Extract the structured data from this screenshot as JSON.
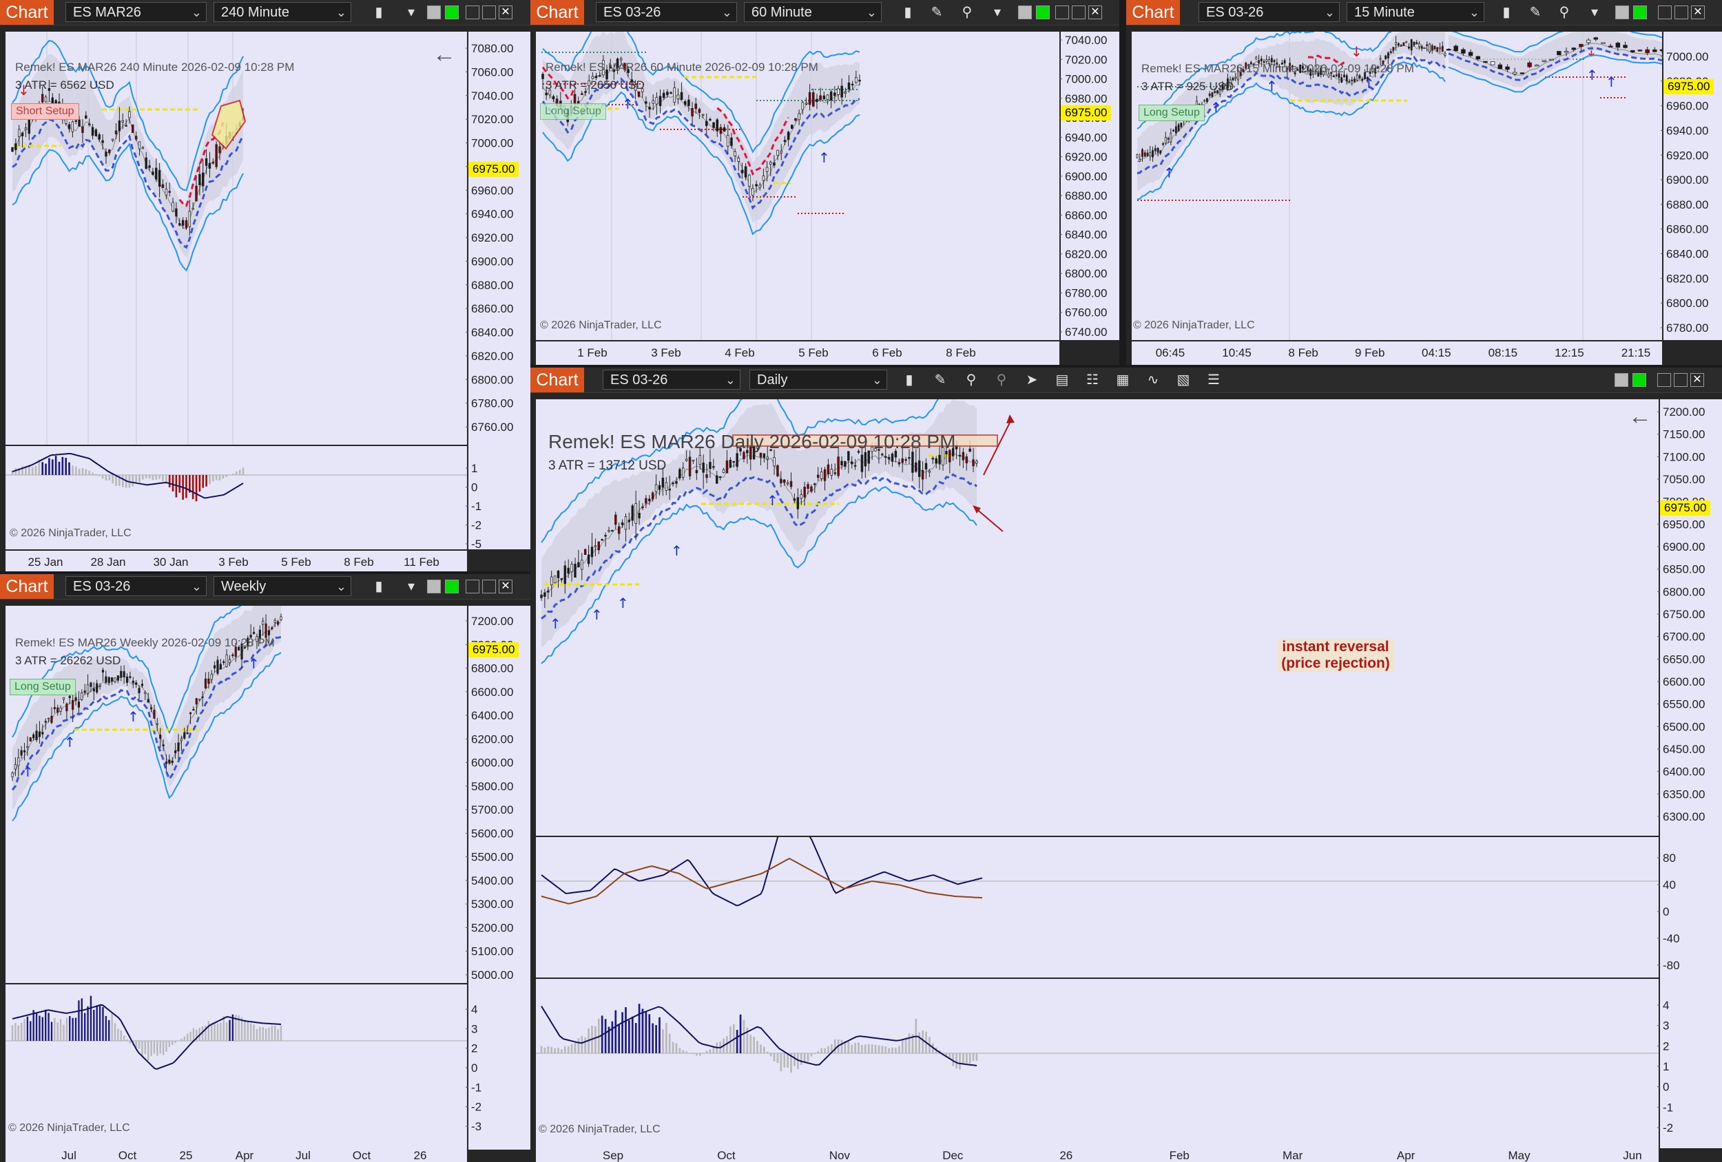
{
  "colors": {
    "accent": "#d9531e",
    "price_tag": "#fff200",
    "band_line": "#2196f3",
    "trail_up": "#3a55d0",
    "trail_down": "#e0153c",
    "bull": "#111111",
    "bear": "#8b0000",
    "hist_up": "#1a1a80",
    "hist_down": "#a01010",
    "hist_neutral": "#b8b8b8"
  },
  "windows": {
    "w240": {
      "tag": "Chart",
      "instrument": "ES MAR26",
      "interval": "240 Minute",
      "header": "Remek!  ES MAR26  240 Minute  2026-02-09 10:28 PM",
      "atr": "3 ATR = 6562 USD",
      "setup": "Short Setup",
      "copyright": "© 2026 NinjaTrader, LLC",
      "price_tag": "6975.00",
      "y_labels": [
        "7080.00",
        "7060.00",
        "7040.00",
        "7020.00",
        "7000.00",
        "6980.00",
        "6960.00",
        "6940.00",
        "6920.00",
        "6900.00",
        "6880.00",
        "6860.00",
        "6840.00",
        "6820.00",
        "6800.00",
        "6780.00",
        "6760.00"
      ],
      "osc_labels": [
        "1",
        "0",
        "-1",
        "-2",
        "-5"
      ],
      "x_labels": [
        "25 Jan",
        "28 Jan",
        "30 Jan",
        "3 Feb",
        "5 Feb",
        "8 Feb",
        "11 Feb"
      ]
    },
    "w60": {
      "tag": "Chart",
      "instrument": "ES 03-26",
      "interval": "60 Minute",
      "header": "Remek!  ES MAR26  60 Minute  2026-02-09 10:28 PM",
      "atr": "3 ATR = 2650 USD",
      "setup": "Long Setup",
      "copyright": "© 2026 NinjaTrader, LLC",
      "price_tag": "6975.00",
      "y_labels": [
        "7040.00",
        "7020.00",
        "7000.00",
        "6980.00",
        "6960.00",
        "6940.00",
        "6920.00",
        "6900.00",
        "6880.00",
        "6860.00",
        "6840.00",
        "6820.00",
        "6800.00",
        "6780.00",
        "6760.00",
        "6740.00"
      ],
      "x_labels": [
        "1 Feb",
        "3 Feb",
        "4 Feb",
        "5 Feb",
        "6 Feb",
        "8 Feb"
      ]
    },
    "w15": {
      "tag": "Chart",
      "instrument": "ES 03-26",
      "interval": "15 Minute",
      "header": "Remek!  ES MAR26  15 Minute  2026-02-09 10:28 PM",
      "atr": "3 ATR = 925 USD",
      "setup": "Long Setup",
      "copyright": "© 2026 NinjaTrader, LLC",
      "price_tag": "6975.00",
      "y_labels": [
        "7000.00",
        "6980.00",
        "6960.00",
        "6940.00",
        "6920.00",
        "6900.00",
        "6880.00",
        "6860.00",
        "6840.00",
        "6820.00",
        "6800.00",
        "6780.00"
      ],
      "x_labels": [
        "06:45",
        "10:45",
        "8 Feb",
        "9 Feb",
        "04:15",
        "08:15",
        "12:15",
        "21:15"
      ]
    },
    "wweekly": {
      "tag": "Chart",
      "instrument": "ES 03-26",
      "interval": "Weekly",
      "header": "Remek!  ES MAR26  Weekly  2026-02-09 10:28 PM",
      "atr": "3 ATR = 26262 USD",
      "setup": "Long Setup",
      "copyright": "© 2026 NinjaTrader, LLC",
      "price_tag": "6975.00",
      "y_labels": [
        "7200.00",
        "7000.00",
        "6800.00",
        "6600.00",
        "6400.00",
        "6200.00",
        "6000.00",
        "5800.00",
        "5700.00",
        "5600.00",
        "5500.00",
        "5400.00",
        "5300.00",
        "5200.00",
        "5100.00",
        "5000.00"
      ],
      "osc_labels": [
        "4",
        "3",
        "2",
        "0",
        "-1",
        "-2",
        "-3"
      ],
      "x_labels": [
        "Jul",
        "Oct",
        "25",
        "Apr",
        "Jul",
        "Oct",
        "26"
      ]
    },
    "wdaily": {
      "tag": "Chart",
      "instrument": "ES 03-26",
      "interval": "Daily",
      "header": "Remek!  ES MAR26  Daily  2026-02-09 10:28 PM",
      "atr": "3 ATR = 13712 USD",
      "copyright": "© 2026 NinjaTrader, LLC",
      "price_tag": "6975.00",
      "y_labels": [
        "7200.00",
        "7150.00",
        "7100.00",
        "7050.00",
        "7000.00",
        "6950.00",
        "6900.00",
        "6850.00",
        "6800.00",
        "6750.00",
        "6700.00",
        "6650.00",
        "6600.00",
        "6550.00",
        "6500.00",
        "6450.00",
        "6400.00",
        "6350.00",
        "6300.00"
      ],
      "osc1_labels": [
        "80",
        "40",
        "0",
        "-40",
        "-80"
      ],
      "osc2_labels": [
        "4",
        "3",
        "2",
        "1",
        "0",
        "-1",
        "-2"
      ],
      "x_labels": [
        "Sep",
        "Oct",
        "Nov",
        "Dec",
        "26",
        "Feb",
        "Mar",
        "Apr",
        "May",
        "Jun"
      ],
      "annotation_line1": "instant reversal",
      "annotation_line2": "(price rejection)"
    }
  }
}
